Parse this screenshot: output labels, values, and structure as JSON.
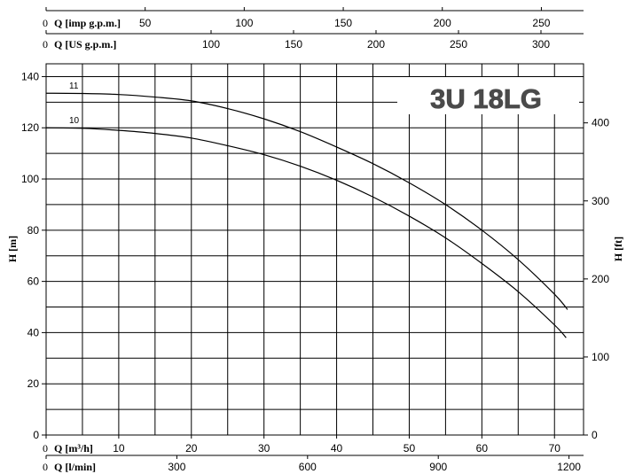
{
  "chart_data": {
    "type": "line",
    "title": "3U 18LG",
    "ylabel": "H [m]",
    "y2label": "H [ft]",
    "xlim": [
      0,
      74
    ],
    "ylim": [
      0,
      145
    ],
    "y2lim": [
      0,
      475.7
    ],
    "grid": true,
    "y_ticks": [
      0,
      20,
      40,
      60,
      80,
      100,
      120,
      140
    ],
    "y2_ticks": [
      0,
      100,
      200,
      300,
      400
    ],
    "x_axes": {
      "imp_gpm": {
        "label": "Q [imp g.p.m.]",
        "ticks": [
          0,
          50,
          100,
          150,
          200,
          250
        ],
        "factor": 3.6661
      },
      "us_gpm": {
        "label": "Q [US g.p.m.]",
        "ticks": [
          0,
          100,
          150,
          200,
          250,
          300
        ],
        "factor": 4.4029
      },
      "m3h": {
        "label": "Q [m³/h]",
        "ticks": [
          0,
          10,
          20,
          30,
          40,
          50,
          60,
          70
        ],
        "factor": 1
      },
      "lmin": {
        "label": "Q [l/min]",
        "ticks": [
          0,
          300,
          600,
          900,
          1200
        ],
        "factor": 16.667
      }
    },
    "series": [
      {
        "name": "11",
        "x": [
          0,
          5,
          10,
          15,
          20,
          25,
          30,
          35,
          40,
          45,
          50,
          55,
          60,
          65,
          70,
          71.8
        ],
        "values": [
          133.5,
          133.4,
          133,
          132,
          130.5,
          127.5,
          123.5,
          118.5,
          112.5,
          106,
          98.5,
          90,
          80,
          68.5,
          55,
          49
        ]
      },
      {
        "name": "10",
        "x": [
          0,
          5,
          10,
          15,
          20,
          25,
          30,
          35,
          40,
          45,
          50,
          55,
          60,
          65,
          70,
          71.6
        ],
        "values": [
          120,
          119.8,
          119,
          117.8,
          116,
          113,
          109.5,
          105,
          99.5,
          93,
          85.5,
          77,
          67,
          56,
          43,
          38
        ]
      }
    ]
  }
}
